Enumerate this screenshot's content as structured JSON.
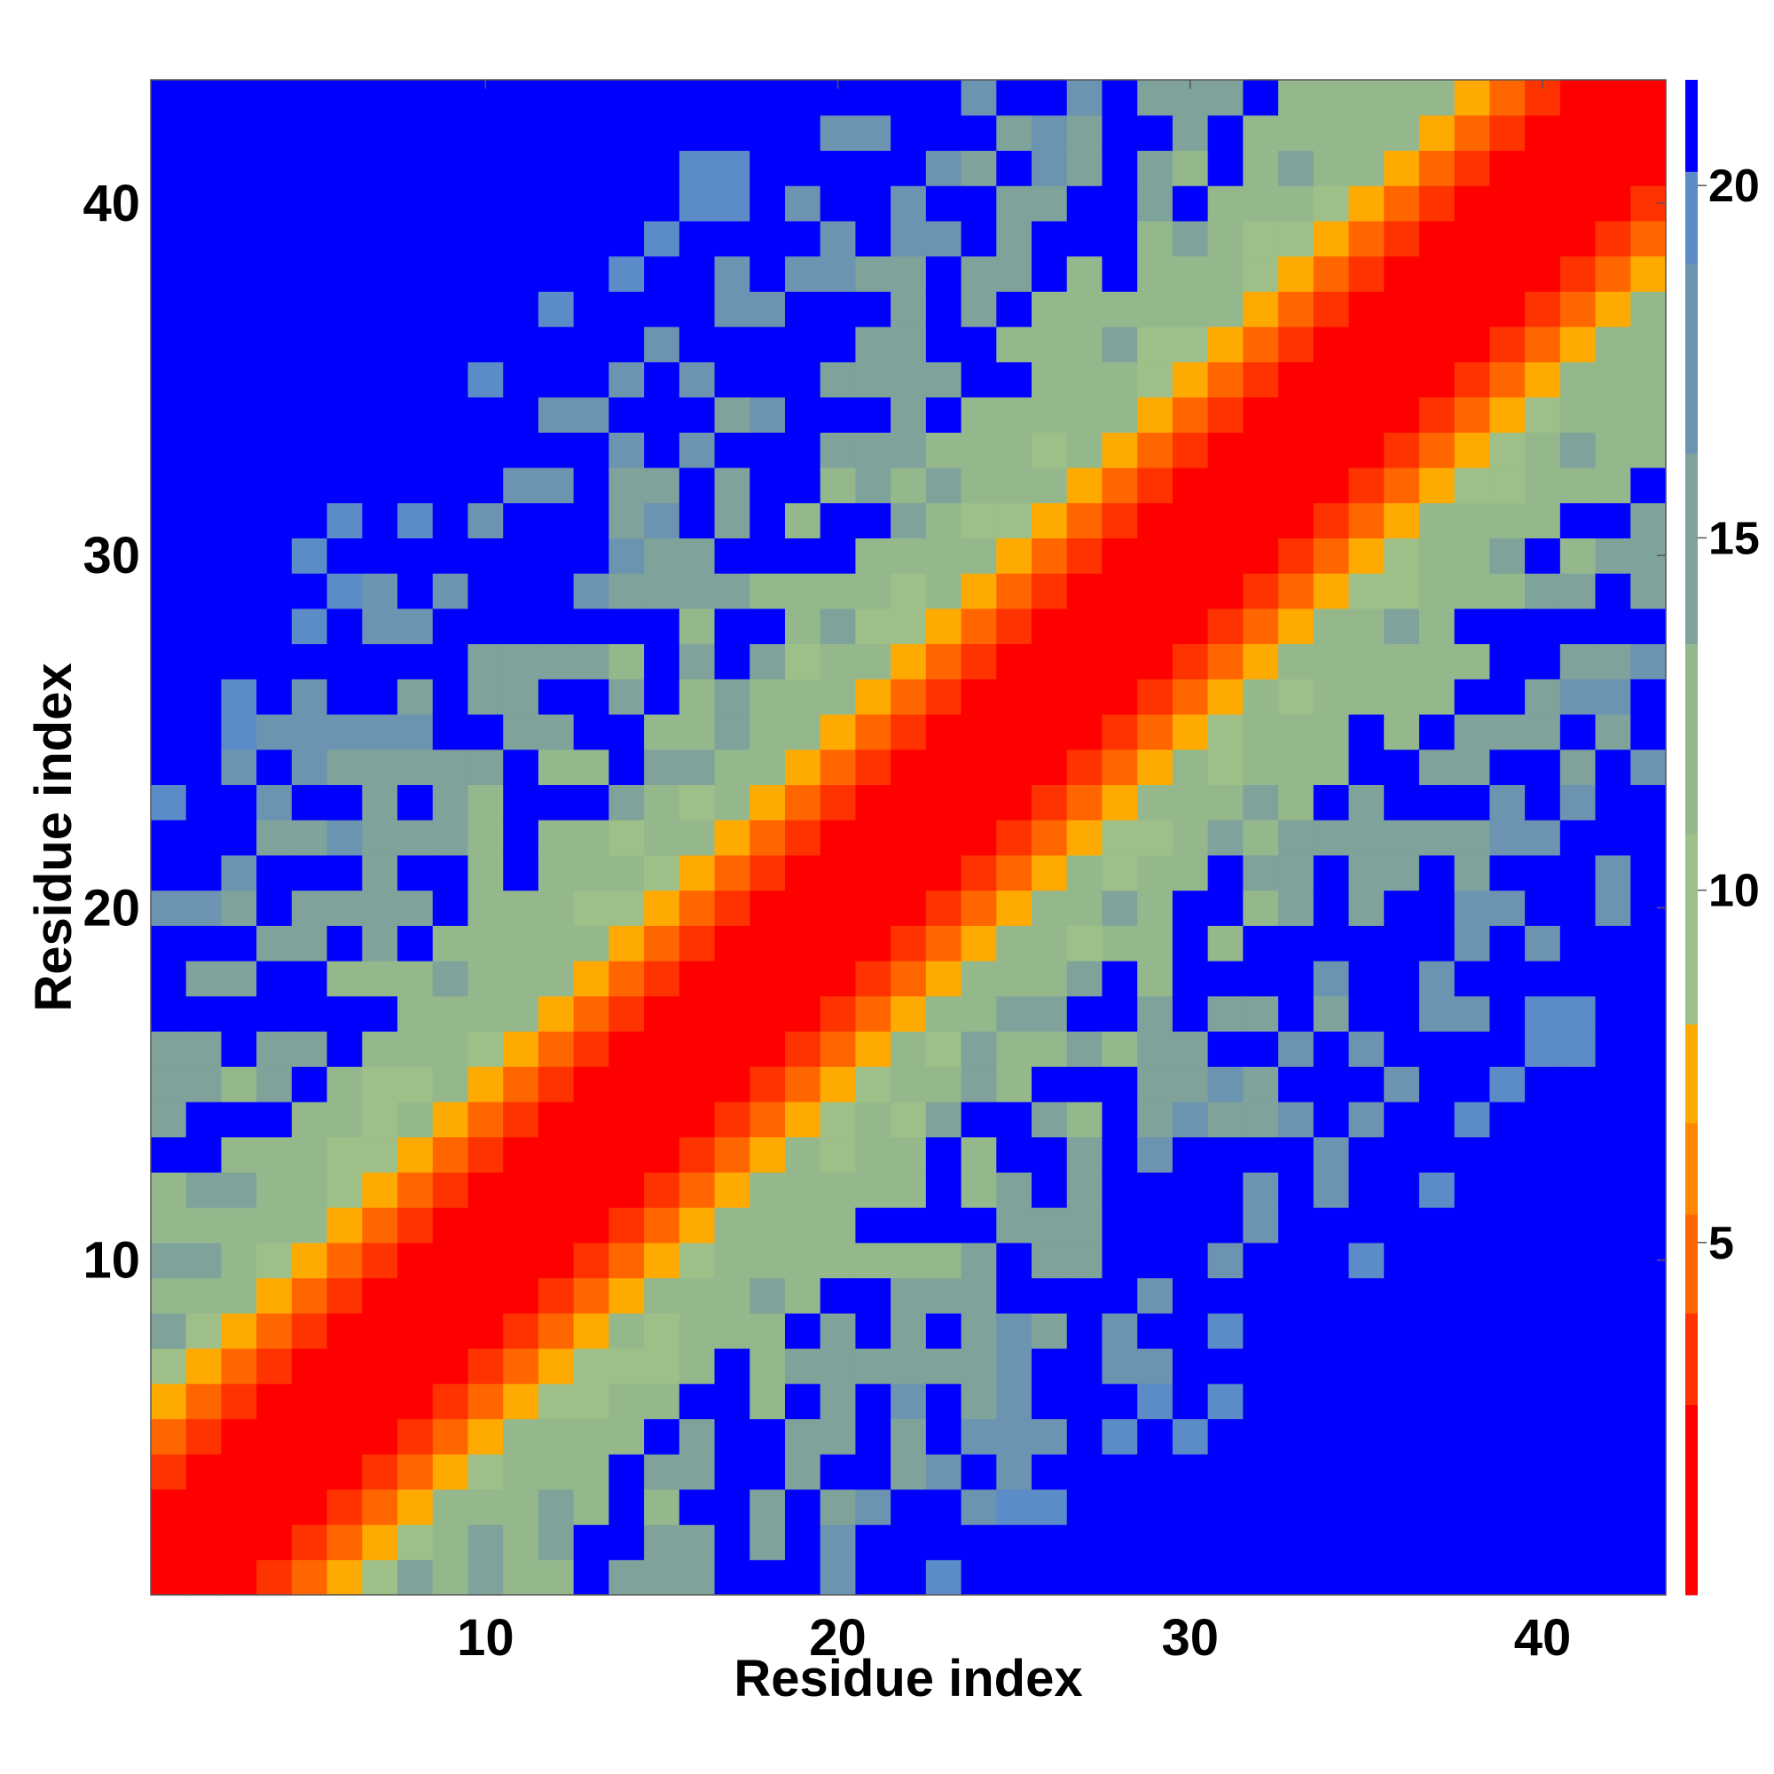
{
  "chart_data": {
    "type": "heatmap",
    "title": "",
    "xlabel": "Residue index",
    "ylabel": "Residue index",
    "n_residues": 43,
    "x_range": [
      1,
      43
    ],
    "y_range": [
      1,
      43
    ],
    "x_ticks": [
      10,
      20,
      30,
      40
    ],
    "y_ticks": [
      10,
      20,
      30,
      40
    ],
    "colorbar": {
      "ticks": [
        5,
        10,
        15,
        20
      ],
      "range": [
        0,
        21.5
      ],
      "placement": "right",
      "levels": [
        {
          "min": 0,
          "max": 2.7,
          "color": "#ff0000"
        },
        {
          "min": 2.7,
          "max": 4.0,
          "color": "#ff3300"
        },
        {
          "min": 4.0,
          "max": 5.4,
          "color": "#ff6600"
        },
        {
          "min": 5.4,
          "max": 6.7,
          "color": "#ff8800"
        },
        {
          "min": 6.7,
          "max": 8.1,
          "color": "#ffaa00"
        },
        {
          "min": 8.1,
          "max": 10.8,
          "color": "#9ebf88"
        },
        {
          "min": 10.8,
          "max": 13.5,
          "color": "#94b88c"
        },
        {
          "min": 13.5,
          "max": 16.2,
          "color": "#7fa39a"
        },
        {
          "min": 16.2,
          "max": 18.9,
          "color": "#6b94b0"
        },
        {
          "min": 18.9,
          "max": 20.2,
          "color": "#5b8cc8"
        },
        {
          "min": 20.2,
          "max": 21.5,
          "color": "#0000ff"
        }
      ]
    },
    "grid": false,
    "description_of_values": "distance-like matrix: ~0-2 on the diagonal, rising with |i-j|, saturating at ~21 in blue regions"
  }
}
